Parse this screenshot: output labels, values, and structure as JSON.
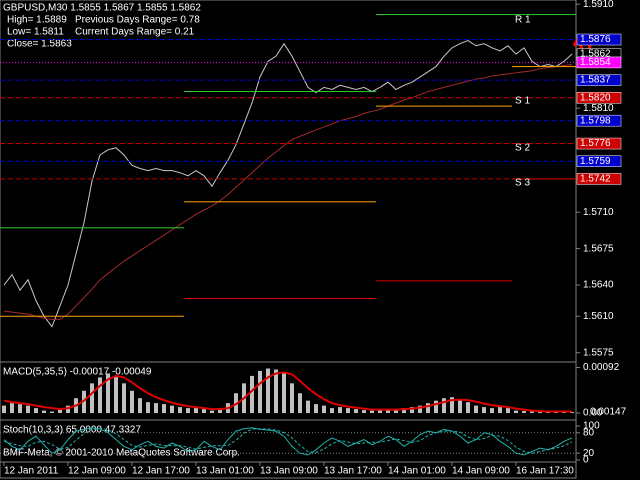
{
  "header": {
    "symbol_line": "GBPUSD,M30  1.5855 1.5867 1.5855 1.5862",
    "high": "High= 1.5889",
    "prev_range": "Previous Days Range= 0.78",
    "low": "Low= 1.5811",
    "cur_range": "Current Days Range= 0.21",
    "close": "Close= 1.5863"
  },
  "copyright": "BMF-Meta, © 2001-2010 MetaQuotes Software Corp.",
  "chart_data": [
    {
      "type": "line",
      "categories": [
        "12 Jan 2011",
        null,
        null,
        null,
        null,
        null,
        null,
        null,
        "12 Jan 09:00",
        null,
        null,
        null,
        null,
        null,
        null,
        null,
        "12 Jan 17:00",
        null,
        null,
        null,
        null,
        null,
        null,
        null,
        "13 Jan 01:00",
        null,
        null,
        null,
        null,
        null,
        null,
        null,
        "13 Jan 09:00",
        null,
        null,
        null,
        null,
        null,
        null,
        null,
        "13 Jan 17:00",
        null,
        null,
        null,
        null,
        null,
        null,
        null,
        "14 Jan 01:00",
        null,
        null,
        null,
        null,
        null,
        null,
        null,
        "14 Jan 09:00",
        null,
        null,
        null,
        null,
        null,
        null,
        null,
        "16 Jan 17:30",
        null,
        null,
        null,
        null,
        null,
        null,
        null
      ],
      "ylim": [
        1.5566,
        1.5914
      ],
      "yticks": [
        {
          "value": 1.591,
          "label": "1.5910"
        },
        {
          "value": 1.581,
          "label": "1.5810"
        },
        {
          "value": 1.571,
          "label": "1.5710"
        },
        1.5675,
        {
          "value": 1.564,
          "label": "1.5640"
        },
        {
          "value": 1.561,
          "label": "1.5610"
        },
        1.5575
      ],
      "series": [
        {
          "color": "#c8c8c8",
          "style": "solid",
          "values": [
            1.564,
            1.565,
            1.5635,
            1.5645,
            1.5625,
            1.561,
            1.56,
            1.562,
            1.564,
            1.567,
            1.57,
            1.574,
            1.5765,
            1.577,
            1.5772,
            1.5765,
            1.5755,
            1.5752,
            1.575,
            1.5752,
            1.575,
            1.575,
            1.5748,
            1.5745,
            1.575,
            1.5745,
            1.5735,
            1.5748,
            1.576,
            1.5775,
            1.5795,
            1.5815,
            1.584,
            1.5855,
            1.586,
            1.5872,
            1.586,
            1.5845,
            1.583,
            1.5825,
            1.583,
            1.5828,
            1.5832,
            1.583,
            1.5828,
            1.583,
            1.5826,
            1.583,
            1.5835,
            1.5828,
            1.5832,
            1.5835,
            1.584,
            1.5845,
            1.585,
            1.586,
            1.5868,
            1.5872,
            1.5875,
            1.587,
            1.5872,
            1.5868,
            1.5865,
            1.587,
            1.5862,
            1.5868,
            1.5855,
            1.585,
            1.5852,
            1.585,
            1.5855,
            1.5862
          ]
        },
        {
          "color": "#a52a2a",
          "style": "solid",
          "values": [
            1.5615,
            1.5614,
            1.5613,
            1.5612,
            1.561,
            1.5608,
            1.5607,
            1.5607,
            1.5612,
            1.562,
            1.5628,
            1.5636,
            1.5645,
            1.5651,
            1.5657,
            1.5663,
            1.5668,
            1.5673,
            1.5678,
            1.5683,
            1.5688,
            1.5693,
            1.5698,
            1.5703,
            1.5708,
            1.5712,
            1.5716,
            1.5721,
            1.5727,
            1.5734,
            1.5741,
            1.5748,
            1.5755,
            1.5762,
            1.5768,
            1.5774,
            1.578,
            1.5783,
            1.5786,
            1.5789,
            1.5792,
            1.5795,
            1.5798,
            1.58,
            1.5802,
            1.5805,
            1.5807,
            1.5809,
            1.5812,
            1.5815,
            1.5818,
            1.582,
            1.5823,
            1.5826,
            1.5828,
            1.583,
            1.5832,
            1.5834,
            1.5836,
            1.5838,
            1.5839,
            1.5841,
            1.5842,
            1.5843,
            1.5844,
            1.5845,
            1.5846,
            1.5848,
            1.5849,
            1.585,
            1.5851,
            1.5852
          ]
        },
        {
          "color": "#32cd32",
          "style": "step",
          "values": [
            1.5695,
            1.5695,
            1.5695,
            1.5695,
            1.5695,
            1.5695,
            1.5695,
            1.5695,
            1.5695,
            1.5695,
            1.5695,
            1.5695,
            1.5695,
            1.5695,
            1.5695,
            1.5695,
            1.5695,
            1.5695,
            1.5695,
            1.5695,
            1.5695,
            1.5695,
            1.5695,
            1.5826,
            1.5826,
            1.5826,
            1.5826,
            1.5826,
            1.5826,
            1.5826,
            1.5826,
            1.5826,
            1.5826,
            1.5826,
            1.5826,
            1.5826,
            1.5826,
            1.5826,
            1.5826,
            1.5826,
            1.5826,
            1.5826,
            1.5826,
            1.5826,
            1.5826,
            1.5826,
            1.5826,
            1.59,
            1.59,
            1.59,
            1.59,
            1.59,
            1.59,
            1.59,
            1.59,
            1.59,
            1.59,
            1.59,
            1.59,
            1.59,
            1.59,
            1.59,
            1.59,
            1.59,
            1.59,
            1.59,
            1.59,
            1.59,
            1.59,
            1.59,
            1.59,
            1.59
          ]
        },
        {
          "color": "#ffa500",
          "style": "step",
          "values": [
            1.561,
            1.561,
            1.561,
            1.561,
            1.561,
            1.561,
            1.561,
            1.561,
            1.561,
            1.561,
            1.561,
            1.561,
            1.561,
            1.561,
            1.561,
            1.561,
            1.561,
            1.561,
            1.561,
            1.561,
            1.561,
            1.561,
            1.561,
            1.572,
            1.572,
            1.572,
            1.572,
            1.572,
            1.572,
            1.572,
            1.572,
            1.572,
            1.572,
            1.572,
            1.572,
            1.572,
            1.572,
            1.572,
            1.572,
            1.572,
            1.572,
            1.572,
            1.572,
            1.572,
            1.572,
            1.572,
            1.572,
            1.5812,
            1.5812,
            1.5812,
            1.5812,
            1.5812,
            1.5812,
            1.5812,
            1.5812,
            1.5812,
            1.5812,
            1.5812,
            1.5812,
            1.5812,
            1.5812,
            1.5812,
            1.5812,
            1.5812,
            1.585,
            1.585,
            1.585,
            1.585,
            1.585,
            1.585,
            1.585,
            1.585
          ]
        },
        {
          "color": "#dd0000",
          "style": "step",
          "values": [
            null,
            null,
            null,
            null,
            null,
            null,
            null,
            null,
            null,
            null,
            null,
            null,
            null,
            null,
            null,
            null,
            null,
            null,
            null,
            null,
            null,
            null,
            null,
            1.5627,
            1.5627,
            1.5627,
            1.5627,
            1.5627,
            1.5627,
            1.5627,
            1.5627,
            1.5627,
            1.5627,
            1.5627,
            1.5627,
            1.5627,
            1.5627,
            1.5627,
            1.5627,
            1.5627,
            1.5627,
            1.5627,
            1.5627,
            1.5627,
            1.5627,
            1.5627,
            1.5627,
            1.5644,
            1.5644,
            1.5644,
            1.5644,
            1.5644,
            1.5644,
            1.5644,
            1.5644,
            1.5644,
            1.5644,
            1.5644,
            1.5644,
            1.5644,
            1.5644,
            1.5644,
            1.5644,
            1.5644,
            1.5742,
            1.5742,
            1.5742,
            1.5742,
            1.5742,
            1.5742,
            1.5742,
            1.5742
          ]
        }
      ],
      "levels": [
        {
          "value": 1.5876,
          "label": "1.5876",
          "color": "#0000cc",
          "style": "dash"
        },
        {
          "value": 1.5862,
          "label": "1.5862",
          "color": "#000000",
          "style": "none"
        },
        {
          "value": 1.5854,
          "label": "1.5854",
          "color": "#ff00ff",
          "style": "dot"
        },
        {
          "value": 1.5837,
          "label": "1.5837",
          "color": "#0000cc",
          "style": "dash"
        },
        {
          "value": 1.582,
          "label": "1.5820",
          "color": "#cc0000",
          "style": "dash"
        },
        {
          "value": 1.5798,
          "label": "1.5798",
          "color": "#0000cc",
          "style": "dash"
        },
        {
          "value": 1.5776,
          "label": "1.5776",
          "color": "#cc0000",
          "style": "dash"
        },
        {
          "value": 1.5759,
          "label": "1.5759",
          "color": "#0000cc",
          "style": "dash"
        },
        {
          "value": 1.5742,
          "label": "1.5742",
          "color": "#cc0000",
          "style": "dash"
        }
      ],
      "pivot_labels": [
        {
          "value": 1.5895,
          "label": "R 1"
        },
        {
          "value": 1.5817,
          "label": "S 1"
        },
        {
          "value": 1.5772,
          "label": "S 2"
        },
        {
          "value": 1.5738,
          "label": "S 3"
        }
      ]
    },
    {
      "type": "macd",
      "title": "MACD(5,35,5) -0.00017 -0.00049",
      "ylim": [
        -0.0001,
        0.00095
      ],
      "yticks": [
        0.00092,
        {
          "value": 0,
          "label": "0.00"
        }
      ],
      "extra_label": "0.00147",
      "histogram": {
        "color": "#c0c0c0",
        "values": [
          0.00015,
          0.0002,
          0.00018,
          0.00015,
          0.0001,
          5e-05,
          3e-05,
          8e-05,
          0.00015,
          0.0003,
          0.00045,
          0.0006,
          0.00072,
          0.0008,
          0.00075,
          0.0006,
          0.00045,
          0.0003,
          0.00022,
          0.0002,
          0.00018,
          0.00015,
          0.00012,
          0.0001,
          0.0001,
          8e-05,
          5e-05,
          0.0001,
          0.0002,
          0.0004,
          0.0006,
          0.00075,
          0.00085,
          0.0009,
          0.00088,
          0.0008,
          0.0006,
          0.0004,
          0.00025,
          0.00018,
          0.00015,
          0.0001,
          0.00012,
          0.0001,
          8e-05,
          6e-05,
          5e-05,
          8e-05,
          8e-05,
          6e-05,
          0.0001,
          0.00012,
          0.00015,
          0.0002,
          0.00025,
          0.0003,
          0.00032,
          0.00028,
          0.00022,
          0.00015,
          0.00012,
          0.0001,
          0.00012,
          0.0001,
          5e-05,
          4e-05,
          3e-05,
          2e-05,
          2e-05,
          3e-05,
          2e-05,
          2e-05
        ]
      },
      "signal": {
        "color": "#dd0000",
        "values": [
          0.00025,
          0.00022,
          0.0002,
          0.00018,
          0.00015,
          0.00012,
          0.0001,
          8e-05,
          0.0001,
          0.00015,
          0.00025,
          0.0004,
          0.00055,
          0.00068,
          0.00075,
          0.00072,
          0.00062,
          0.0005,
          0.0004,
          0.00032,
          0.00026,
          0.00021,
          0.00017,
          0.00014,
          0.00012,
          0.0001,
          8e-05,
          8e-05,
          0.0001,
          0.00018,
          0.0003,
          0.00045,
          0.0006,
          0.00072,
          0.0008,
          0.00082,
          0.00078,
          0.00065,
          0.0005,
          0.00038,
          0.00028,
          0.0002,
          0.00016,
          0.00013,
          0.00011,
          9e-05,
          7e-05,
          7e-05,
          7e-05,
          7e-05,
          8e-05,
          9e-05,
          0.00011,
          0.00014,
          0.00018,
          0.00022,
          0.00026,
          0.00027,
          0.00026,
          0.00023,
          0.00019,
          0.00016,
          0.00014,
          0.00012,
          9e-05,
          7e-05,
          5e-05,
          4e-05,
          3e-05,
          3e-05,
          3e-05,
          3e-05
        ]
      }
    },
    {
      "type": "stochastic",
      "title": "Stoch(10,3,3) 65.0000 47.3327",
      "ylim": [
        0,
        100
      ],
      "yticks": [
        100,
        80,
        20,
        0
      ],
      "levels": [
        80,
        20
      ],
      "main": {
        "color": "#20b2aa",
        "values": [
          60,
          40,
          30,
          55,
          70,
          45,
          20,
          30,
          60,
          85,
          90,
          95,
          92,
          80,
          60,
          40,
          30,
          45,
          55,
          40,
          35,
          50,
          40,
          25,
          30,
          55,
          40,
          30,
          60,
          85,
          92,
          95,
          90,
          88,
          85,
          70,
          40,
          20,
          15,
          30,
          50,
          65,
          55,
          40,
          50,
          60,
          45,
          55,
          70,
          60,
          40,
          55,
          75,
          85,
          80,
          90,
          85,
          70,
          50,
          60,
          80,
          75,
          55,
          40,
          20,
          15,
          25,
          35,
          30,
          40,
          55,
          65
        ]
      },
      "signal": {
        "color": "#20b2aa",
        "values": [
          55,
          48,
          42,
          40,
          52,
          55,
          45,
          32,
          37,
          58,
          78,
          90,
          93,
          89,
          77,
          60,
          43,
          38,
          43,
          47,
          43,
          42,
          42,
          38,
          32,
          37,
          42,
          42,
          43,
          58,
          79,
          91,
          92,
          91,
          88,
          81,
          65,
          43,
          25,
          22,
          32,
          48,
          57,
          53,
          48,
          50,
          52,
          53,
          57,
          62,
          57,
          52,
          57,
          72,
          80,
          85,
          85,
          82,
          68,
          60,
          63,
          72,
          70,
          57,
          38,
          25,
          20,
          25,
          30,
          35,
          42,
          53
        ]
      }
    }
  ]
}
